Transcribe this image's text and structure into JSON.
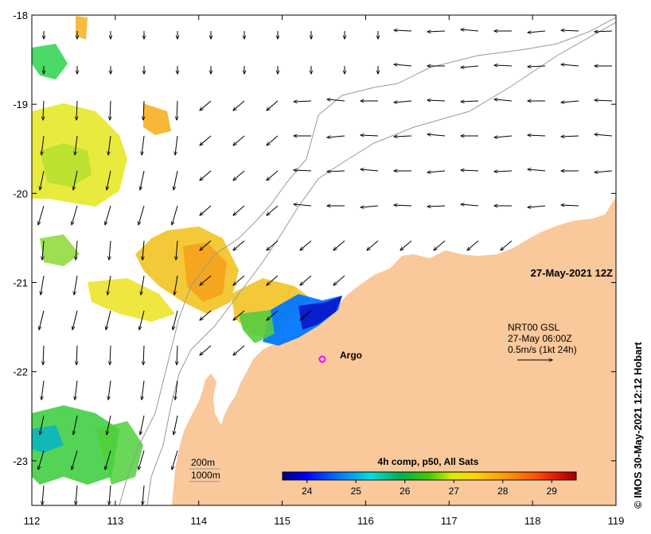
{
  "map": {
    "date_label": "27-May-2021 12Z",
    "copyright": "© IMOS 30-May-2021 12:12 Hobart",
    "x_ticks": [
      "112",
      "113",
      "114",
      "115",
      "116",
      "117",
      "118",
      "119"
    ],
    "y_ticks": [
      "-18",
      "-19",
      "-20",
      "-21",
      "-22",
      "-23"
    ],
    "lon_range": [
      112,
      119
    ],
    "lat_range": [
      -18,
      -23.5
    ],
    "land_color": "#f9c89b",
    "legend": {
      "line1": "NRT00 GSL",
      "line2": "27-May 06:00Z",
      "line3": "0.5m/s (1kt 24h)"
    },
    "argo": {
      "label": "Argo",
      "lon": 115.48,
      "lat": -21.86,
      "color": "#ff00ff"
    },
    "isobaths": {
      "label_200": "200m",
      "label_1000": "1000m"
    },
    "colorbar": {
      "title": "4h comp, p50, All Sats",
      "ticks": [
        "24",
        "25",
        "26",
        "27",
        "28",
        "29"
      ],
      "range": [
        23.5,
        29.5
      ],
      "colors": [
        "#00007f",
        "#0000ff",
        "#007fff",
        "#00ffff",
        "#00cc66",
        "#00aa00",
        "#88dd00",
        "#ffff00",
        "#ffbf00",
        "#ff7f00",
        "#ff3f00",
        "#cc0000",
        "#7f0000"
      ]
    }
  }
}
